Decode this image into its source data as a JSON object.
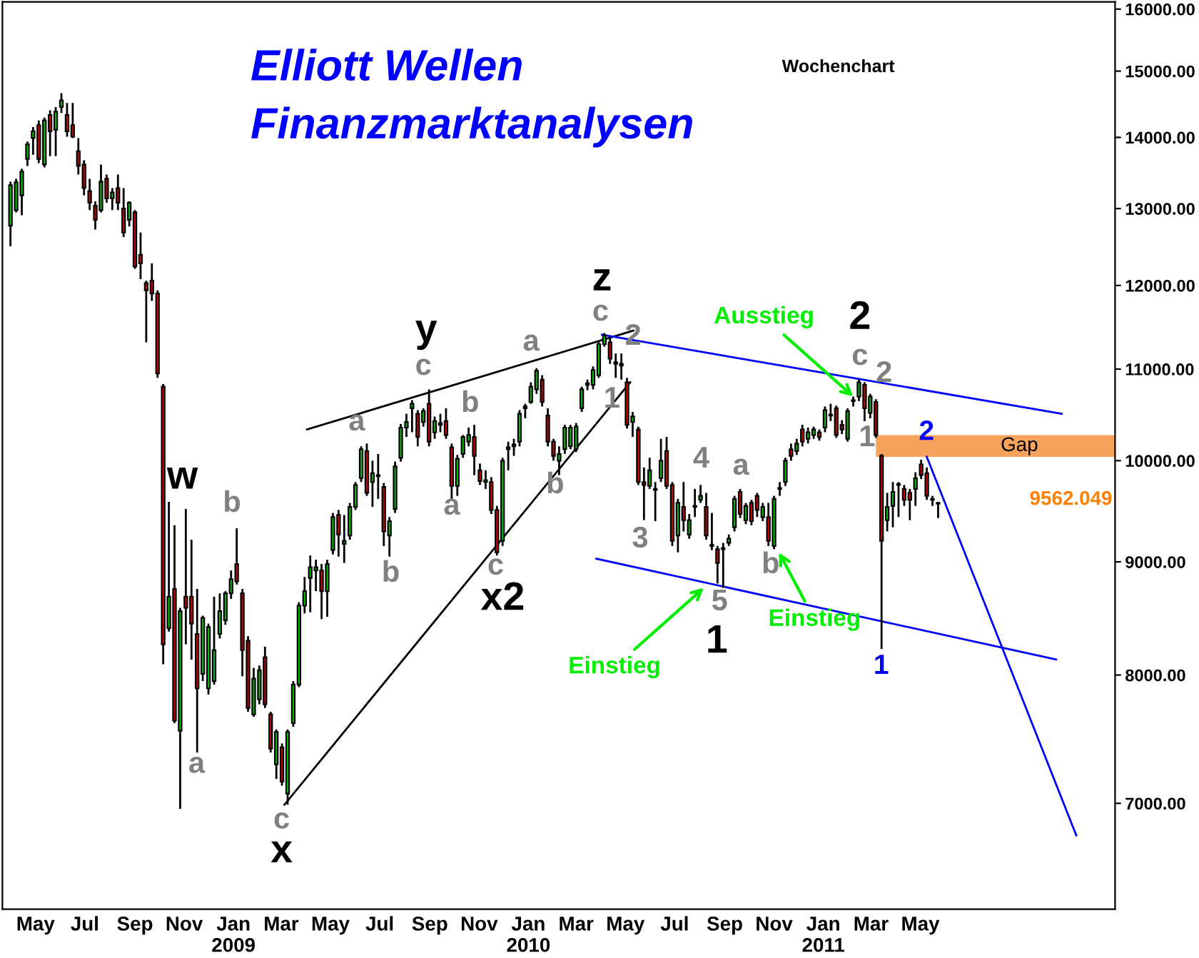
{
  "chart_data": {
    "type": "candlestick",
    "title": "Elliott Wellen",
    "subtitle": "Finanzmarktanalysen",
    "log": "y",
    "grid": false,
    "tick_labels": "xy",
    "colors": [
      "#00cc00",
      "#00cc00",
      "#00cc00",
      "#00cc00",
      "#00cc00",
      "#dd0000",
      "#00cc00",
      "#dd0000",
      "#00cc00",
      "#00cc00",
      "#dd0000",
      "#dd0000",
      "#dd0000",
      "#dd0000",
      "#dd0000",
      "#dd0000",
      "#00cc00",
      "#dd0000",
      "#00cc00",
      "#dd0000",
      "#dd0000",
      "#00cc00",
      "#dd0000",
      "#dd0000",
      "#dd0000",
      "#dd0000",
      "#dd0000",
      "#dd0000",
      "#00cc00",
      "#dd0000",
      "#00cc00",
      "#dd0000",
      "#dd0000",
      "#dd0000",
      "#00cc00",
      "#00cc00",
      "#00cc00",
      "#00cc00",
      "#00cc00",
      "#00cc00",
      "#dd0000",
      "#dd0000",
      "#dd0000",
      "#00cc00",
      "#00cc00",
      "#dd0000",
      "#dd0000",
      "#00cc00",
      "#dd0000",
      "#00cc00",
      "#00cc00",
      "#00cc00",
      "#00cc00",
      "#00cc00",
      "#00cc00",
      "#dd0000",
      "#00cc00",
      "#00cc00",
      "#dd0000",
      "#00cc00",
      "#00cc00",
      "#00cc00",
      "#00cc00",
      "#dd0000",
      "#00cc00",
      "#00cc00",
      "#dd0000",
      "#00cc00",
      "#00cc00",
      "#00cc00",
      "#00cc00",
      "#00cc00",
      "#dd0000",
      "#00cc00",
      "#dd0000",
      "#00cc00",
      "#00cc00",
      "#dd0000",
      "#dd0000",
      "#00cc00",
      "#00cc00",
      "#00cc00",
      "#dd0000",
      "#dd0000",
      "#00cc00",
      "#dd0000",
      "#dd0000",
      "#00cc00",
      "#00cc00",
      "#00cc00",
      "#00cc00",
      "#00cc00",
      "#00cc00",
      "#00cc00",
      "#dd0000",
      "#dd0000",
      "#dd0000",
      "#00cc00",
      "#00cc00",
      "#00cc00",
      "#00cc00",
      "#00cc00",
      "#00cc00",
      "#00cc00",
      "#00cc00",
      "#00cc00",
      "#dd0000",
      "#00cc00",
      "#dd0000",
      "#dd0000",
      "#00cc00",
      "#dd0000",
      "#dd0000",
      "#00cc00",
      "#dd0000",
      "#00cc00",
      "#dd0000",
      "#dd0000",
      "#00cc00",
      "#dd0000",
      "#00cc00",
      "#00cc00",
      "#00cc00",
      "#dd0000",
      "#00cc00",
      "#dd0000",
      "#00cc00",
      "#00cc00",
      "#00cc00",
      "#dd0000",
      "#00cc00",
      "#dd0000",
      "#dd0000",
      "#00cc00",
      "#dd0000",
      "#00cc00",
      "#00cc00",
      "#00cc00",
      "#dd0000",
      "#00cc00",
      "#dd0000",
      "#00cc00",
      "#00cc00",
      "#dd0000",
      "#00cc00",
      "#00cc00",
      "#dd0000",
      "#dd0000",
      "#00cc00",
      "#00cc00",
      "#00cc00",
      "#dd0000",
      "#00cc00",
      "#dd0000",
      "#dd0000",
      "#00cc00",
      "#00cc00",
      "#00cc00",
      "#dd0000",
      "#dd0000",
      "#00cc00",
      "#dd0000",
      "#dd0000",
      "#dd0000",
      "#dd0000"
    ],
    "xlim": [
      "2008-03-21",
      "2011-12-28"
    ],
    "ylim": [
      6270,
      16120
    ],
    "xticks": [
      {
        "value": "2008-05-01",
        "label": "May"
      },
      {
        "value": "2008-07-01",
        "label": "Jul"
      },
      {
        "value": "2008-09-01",
        "label": "Sep"
      },
      {
        "value": "2008-11-01",
        "label": "Nov"
      },
      {
        "value": "2009-01-01",
        "label": "Jan\n2009"
      },
      {
        "value": "2009-03-01",
        "label": "Mar"
      },
      {
        "value": "2009-05-01",
        "label": "May"
      },
      {
        "value": "2009-07-01",
        "label": "Jul"
      },
      {
        "value": "2009-09-01",
        "label": "Sep"
      },
      {
        "value": "2009-11-01",
        "label": "Nov"
      },
      {
        "value": "2010-01-01",
        "label": "Jan\n2010"
      },
      {
        "value": "2010-03-01",
        "label": "Mar"
      },
      {
        "value": "2010-05-01",
        "label": "May"
      },
      {
        "value": "2010-07-01",
        "label": "Jul"
      },
      {
        "value": "2010-09-01",
        "label": "Sep"
      },
      {
        "value": "2010-11-01",
        "label": "Nov"
      },
      {
        "value": "2011-01-01",
        "label": "Jan\n2011"
      },
      {
        "value": "2011-03-01",
        "label": "Mar"
      },
      {
        "value": "2011-05-01",
        "label": "May"
      }
    ],
    "yticks": [
      {
        "value": 7000,
        "label": "7000.00"
      },
      {
        "value": 8000,
        "label": "8000.00"
      },
      {
        "value": 9000,
        "label": "9000.00"
      },
      {
        "value": 10000,
        "label": "10000.00"
      },
      {
        "value": 11000,
        "label": "11000.00"
      },
      {
        "value": 12000,
        "label": "12000.00"
      },
      {
        "value": 13000,
        "label": "13000.00"
      },
      {
        "value": 14000,
        "label": "14000.00"
      },
      {
        "value": 15000,
        "label": "15000.00"
      },
      {
        "value": 16000,
        "label": "16000.00"
      }
    ],
    "x": [
      "2008-03-31",
      "2008-04-07",
      "2008-04-14",
      "2008-04-21",
      "2008-04-28",
      "2008-05-05",
      "2008-05-12",
      "2008-05-19",
      "2008-05-26",
      "2008-06-02",
      "2008-06-09",
      "2008-06-16",
      "2008-06-23",
      "2008-06-30",
      "2008-07-07",
      "2008-07-14",
      "2008-07-21",
      "2008-07-28",
      "2008-08-04",
      "2008-08-11",
      "2008-08-18",
      "2008-08-25",
      "2008-09-01",
      "2008-09-08",
      "2008-09-15",
      "2008-09-22",
      "2008-09-29",
      "2008-10-06",
      "2008-10-13",
      "2008-10-20",
      "2008-10-27",
      "2008-11-03",
      "2008-11-10",
      "2008-11-17",
      "2008-11-24",
      "2008-12-01",
      "2008-12-08",
      "2008-12-15",
      "2008-12-22",
      "2008-12-29",
      "2009-01-05",
      "2009-01-12",
      "2009-01-19",
      "2009-01-26",
      "2009-02-02",
      "2009-02-09",
      "2009-02-16",
      "2009-02-23",
      "2009-03-02",
      "2009-03-09",
      "2009-03-16",
      "2009-03-23",
      "2009-03-30",
      "2009-04-06",
      "2009-04-13",
      "2009-04-20",
      "2009-04-27",
      "2009-05-04",
      "2009-05-11",
      "2009-05-18",
      "2009-05-25",
      "2009-06-01",
      "2009-06-08",
      "2009-06-15",
      "2009-06-22",
      "2009-06-29",
      "2009-07-06",
      "2009-07-13",
      "2009-07-20",
      "2009-07-27",
      "2009-08-03",
      "2009-08-10",
      "2009-08-17",
      "2009-08-24",
      "2009-08-31",
      "2009-09-07",
      "2009-09-14",
      "2009-09-21",
      "2009-09-28",
      "2009-10-05",
      "2009-10-12",
      "2009-10-19",
      "2009-10-26",
      "2009-11-02",
      "2009-11-09",
      "2009-11-16",
      "2009-11-23",
      "2009-11-30",
      "2009-12-07",
      "2009-12-14",
      "2009-12-21",
      "2009-12-28",
      "2010-01-04",
      "2010-01-11",
      "2010-01-18",
      "2010-01-25",
      "2010-02-01",
      "2010-02-08",
      "2010-02-15",
      "2010-02-22",
      "2010-03-01",
      "2010-03-08",
      "2010-03-15",
      "2010-03-22",
      "2010-03-29",
      "2010-04-05",
      "2010-04-12",
      "2010-04-19",
      "2010-04-26",
      "2010-05-03",
      "2010-05-10",
      "2010-05-17",
      "2010-05-24",
      "2010-05-31",
      "2010-06-07",
      "2010-06-14",
      "2010-06-21",
      "2010-06-28",
      "2010-07-05",
      "2010-07-12",
      "2010-07-19",
      "2010-07-26",
      "2010-08-02",
      "2010-08-09",
      "2010-08-16",
      "2010-08-23",
      "2010-08-30",
      "2010-09-06",
      "2010-09-13",
      "2010-09-20",
      "2010-09-27",
      "2010-10-04",
      "2010-10-11",
      "2010-10-18",
      "2010-10-25",
      "2010-11-01",
      "2010-11-08",
      "2010-11-15",
      "2010-11-22",
      "2010-11-29",
      "2010-12-06",
      "2010-12-13",
      "2010-12-20",
      "2010-12-27",
      "2011-01-03",
      "2011-01-10",
      "2011-01-17",
      "2011-01-24",
      "2011-01-31",
      "2011-02-07",
      "2011-02-14",
      "2011-02-21",
      "2011-02-28",
      "2011-03-07",
      "2011-03-14",
      "2011-03-21",
      "2011-03-28",
      "2011-04-04",
      "2011-04-11",
      "2011-04-18",
      "2011-04-25",
      "2011-05-02",
      "2011-05-09",
      "2011-05-16",
      "2011-05-23"
    ],
    "ohlc": [
      [
        12770,
        13370,
        12500,
        13320
      ],
      [
        12980,
        13410,
        12950,
        13360
      ],
      [
        13180,
        13550,
        12910,
        13510
      ],
      [
        13690,
        13940,
        13590,
        13900
      ],
      [
        13990,
        14150,
        13750,
        14090
      ],
      [
        14180,
        14250,
        13630,
        13690
      ],
      [
        13610,
        14290,
        13570,
        14250
      ],
      [
        14330,
        14400,
        13730,
        14090
      ],
      [
        14110,
        14450,
        13730,
        14380
      ],
      [
        14450,
        14660,
        14360,
        14550
      ],
      [
        14330,
        14510,
        14010,
        14090
      ],
      [
        14180,
        14510,
        13990,
        14010
      ],
      [
        13800,
        13990,
        13470,
        13590
      ],
      [
        13610,
        13670,
        13180,
        13280
      ],
      [
        13240,
        13410,
        12980,
        13080
      ],
      [
        13040,
        13100,
        12720,
        12850
      ],
      [
        12980,
        13610,
        12950,
        13370
      ],
      [
        13410,
        13470,
        13080,
        13140
      ],
      [
        13140,
        13280,
        12980,
        13220
      ],
      [
        13280,
        13470,
        12980,
        13080
      ],
      [
        13000,
        13280,
        12620,
        12680
      ],
      [
        12850,
        13100,
        12760,
        13080
      ],
      [
        12950,
        12980,
        12210,
        12240
      ],
      [
        12390,
        12680,
        12080,
        12280
      ],
      [
        12030,
        12060,
        11310,
        11940
      ],
      [
        12060,
        12280,
        11810,
        11900
      ],
      [
        11900,
        11940,
        10900,
        10950
      ],
      [
        10800,
        10830,
        8090,
        8260
      ],
      [
        8400,
        9580,
        8370,
        8680
      ],
      [
        8750,
        9350,
        7610,
        7630
      ],
      [
        7550,
        8580,
        6960,
        8550
      ],
      [
        8680,
        9510,
        8260,
        8580
      ],
      [
        8680,
        9210,
        8130,
        8440
      ],
      [
        8350,
        8750,
        7380,
        7890
      ],
      [
        8010,
        8510,
        7950,
        8490
      ],
      [
        7890,
        8440,
        7840,
        8410
      ],
      [
        7950,
        8680,
        7920,
        8210
      ],
      [
        8350,
        8710,
        8310,
        8550
      ],
      [
        8470,
        8730,
        8430,
        8710
      ],
      [
        8710,
        8920,
        8660,
        8840
      ],
      [
        8980,
        9320,
        8790,
        8820
      ],
      [
        8710,
        8750,
        7990,
        8210
      ],
      [
        8290,
        8330,
        7700,
        7730
      ],
      [
        7680,
        8060,
        7660,
        7970
      ],
      [
        7800,
        8080,
        7760,
        8040
      ],
      [
        8150,
        8240,
        7730,
        7760
      ],
      [
        7680,
        7700,
        7380,
        7410
      ],
      [
        7290,
        7560,
        7180,
        7540
      ],
      [
        7420,
        7450,
        7130,
        7160
      ],
      [
        7070,
        7560,
        6990,
        7540
      ],
      [
        7610,
        7950,
        7580,
        7920
      ],
      [
        7920,
        8630,
        7900,
        8600
      ],
      [
        8600,
        8860,
        8530,
        8730
      ],
      [
        8850,
        9060,
        8540,
        8950
      ],
      [
        8920,
        9020,
        8730,
        8950
      ],
      [
        8920,
        8980,
        8480,
        8730
      ],
      [
        8730,
        9020,
        8500,
        8980
      ],
      [
        9110,
        9470,
        9070,
        9430
      ],
      [
        9450,
        9500,
        9050,
        9260
      ],
      [
        9170,
        9450,
        8990,
        9200
      ],
      [
        9250,
        9570,
        9210,
        9530
      ],
      [
        9530,
        9780,
        9500,
        9750
      ],
      [
        9820,
        10150,
        9780,
        10120
      ],
      [
        10100,
        10180,
        9640,
        9670
      ],
      [
        9780,
        10000,
        9530,
        9870
      ],
      [
        9840,
        10070,
        9610,
        9850
      ],
      [
        9730,
        9770,
        9150,
        9290
      ],
      [
        9250,
        9430,
        9050,
        9390
      ],
      [
        9510,
        9990,
        9470,
        9940
      ],
      [
        10030,
        10390,
        9990,
        10350
      ],
      [
        10350,
        10500,
        10250,
        10410
      ],
      [
        10560,
        10650,
        10300,
        10610
      ],
      [
        10500,
        10540,
        10150,
        10250
      ],
      [
        10410,
        10560,
        10360,
        10530
      ],
      [
        10610,
        10770,
        10150,
        10200
      ],
      [
        10300,
        10470,
        10230,
        10420
      ],
      [
        10380,
        10500,
        10300,
        10400
      ],
      [
        10420,
        10560,
        10230,
        10270
      ],
      [
        10140,
        10180,
        9610,
        9740
      ],
      [
        9740,
        10060,
        9640,
        10020
      ],
      [
        10070,
        10270,
        10030,
        10250
      ],
      [
        10200,
        10350,
        10150,
        10270
      ],
      [
        10250,
        10380,
        9850,
        10050
      ],
      [
        9900,
        9970,
        9750,
        9790
      ],
      [
        9780,
        9900,
        9710,
        9800
      ],
      [
        9780,
        9830,
        9460,
        9500
      ],
      [
        9500,
        9540,
        9060,
        9090
      ],
      [
        9200,
        10030,
        9150,
        10000
      ],
      [
        10120,
        10200,
        9900,
        10140
      ],
      [
        10150,
        10230,
        10050,
        10170
      ],
      [
        10200,
        10540,
        10150,
        10500
      ],
      [
        10560,
        10610,
        10450,
        10580
      ],
      [
        10630,
        10850,
        10610,
        10800
      ],
      [
        10770,
        11010,
        10720,
        10980
      ],
      [
        10880,
        10930,
        10580,
        10630
      ],
      [
        10480,
        10560,
        10150,
        10200
      ],
      [
        10200,
        10230,
        10000,
        10050
      ],
      [
        10000,
        10150,
        9850,
        10070
      ],
      [
        10120,
        10380,
        10070,
        10350
      ],
      [
        10150,
        10380,
        10120,
        10350
      ],
      [
        10120,
        10400,
        10090,
        10360
      ],
      [
        10560,
        10800,
        10520,
        10770
      ],
      [
        10820,
        10880,
        10760,
        10840
      ],
      [
        10820,
        11030,
        10770,
        10990
      ],
      [
        10930,
        11330,
        10900,
        11290
      ],
      [
        11290,
        11420,
        11260,
        11390
      ],
      [
        11310,
        11370,
        11060,
        11120
      ],
      [
        11060,
        11180,
        10900,
        11080
      ],
      [
        11060,
        11180,
        10880,
        11040
      ],
      [
        10850,
        10900,
        10340,
        10380
      ],
      [
        10410,
        10520,
        10250,
        10470
      ],
      [
        10330,
        10360,
        9750,
        9780
      ],
      [
        9780,
        9930,
        9400,
        9750
      ],
      [
        9740,
        10030,
        9710,
        9900
      ],
      [
        9710,
        9780,
        9390,
        9700
      ],
      [
        9820,
        10230,
        9780,
        10000
      ],
      [
        10100,
        10250,
        9710,
        9740
      ],
      [
        9750,
        9780,
        9150,
        9200
      ],
      [
        9250,
        9610,
        9090,
        9570
      ],
      [
        9530,
        9780,
        9290,
        9400
      ],
      [
        9260,
        9460,
        9220,
        9400
      ],
      [
        9530,
        9710,
        9430,
        9540
      ],
      [
        9600,
        9750,
        9570,
        9640
      ],
      [
        9530,
        9670,
        9210,
        9250
      ],
      [
        9150,
        9470,
        9110,
        9160
      ],
      [
        9120,
        9150,
        8800,
        8990
      ],
      [
        9120,
        9180,
        8760,
        9130
      ],
      [
        9180,
        9260,
        9150,
        9220
      ],
      [
        9330,
        9640,
        9290,
        9610
      ],
      [
        9680,
        9710,
        9420,
        9460
      ],
      [
        9400,
        9570,
        9360,
        9540
      ],
      [
        9570,
        9600,
        9350,
        9390
      ],
      [
        9640,
        9670,
        9430,
        9500
      ],
      [
        9430,
        9570,
        9390,
        9530
      ],
      [
        9430,
        9570,
        9150,
        9200
      ],
      [
        9150,
        9640,
        9120,
        9610
      ],
      [
        9710,
        9780,
        9640,
        9720
      ],
      [
        9780,
        10030,
        9740,
        10000
      ],
      [
        10120,
        10180,
        10000,
        10050
      ],
      [
        10100,
        10230,
        10060,
        10180
      ],
      [
        10330,
        10380,
        10150,
        10200
      ],
      [
        10230,
        10350,
        10180,
        10300
      ],
      [
        10270,
        10360,
        10230,
        10330
      ],
      [
        10300,
        10330,
        10210,
        10250
      ],
      [
        10350,
        10580,
        10300,
        10540
      ],
      [
        10480,
        10610,
        10420,
        10490
      ],
      [
        10560,
        10590,
        10240,
        10270
      ],
      [
        10380,
        10430,
        10280,
        10330
      ],
      [
        10230,
        10560,
        10200,
        10530
      ],
      [
        10640,
        10690,
        10580,
        10650
      ],
      [
        10690,
        10880,
        10640,
        10850
      ],
      [
        10820,
        10850,
        10420,
        10560
      ],
      [
        10510,
        10720,
        10450,
        10690
      ],
      [
        10630,
        10660,
        10240,
        10270
      ],
      [
        10050,
        10070,
        8220,
        9200
      ],
      [
        9400,
        9670,
        9290,
        9530
      ],
      [
        9540,
        9780,
        9330,
        9680
      ],
      [
        9750,
        9780,
        9430,
        9760
      ],
      [
        9710,
        9750,
        9540,
        9600
      ],
      [
        9670,
        9710,
        9400,
        9600
      ],
      [
        9710,
        9880,
        9540,
        9820
      ],
      [
        9960,
        10010,
        9810,
        9850
      ],
      [
        9870,
        9930,
        9600,
        9640
      ],
      [
        9610,
        9640,
        9540,
        9600
      ],
      [
        9570,
        9580,
        9420,
        9562.049
      ]
    ],
    "series": [
      {
        "type": "line",
        "color": "#000000",
        "x": [
          "2009-04-02",
          "2010-05-11"
        ],
        "values": [
          10330,
          11450
        ]
      },
      {
        "type": "line",
        "color": "#000000",
        "x": [
          "2009-03-05",
          "2010-05-07"
        ],
        "values": [
          6990,
          10850
        ]
      },
      {
        "type": "line",
        "color": "#0000ff",
        "x": [
          "2010-04-02",
          "2011-10-23"
        ],
        "values": [
          11400,
          10500
        ]
      },
      {
        "type": "line",
        "color": "#0000ff",
        "x": [
          "2010-03-26",
          "2011-10-16"
        ],
        "values": [
          9030,
          8130
        ]
      },
      {
        "type": "line",
        "color": "#0000ff",
        "x": [
          "2011-05-09",
          "2011-11-10"
        ],
        "values": [
          10040,
          6770
        ]
      }
    ],
    "bands": [
      {
        "axis": "y",
        "from": 10040,
        "to": 10270,
        "label": "Gap",
        "color": "#f7a35c"
      }
    ],
    "annotations": [
      "Wochenchart",
      "w",
      "b",
      "a",
      "c",
      "x",
      "a",
      "c",
      "y",
      "b",
      "b",
      "a",
      "c",
      "x2",
      "a",
      "b",
      "z",
      "c",
      "2",
      "1",
      "3",
      "4",
      "a",
      "5",
      "1",
      "b",
      "2",
      "c",
      "2",
      "1",
      "2",
      "1",
      {
        "text": "Ausstieg",
        "x": "2011-02-07",
        "y": 10690
      },
      {
        "text": "Einstieg",
        "x": "2010-08-06",
        "y": 8760
      },
      {
        "text": "Einstieg",
        "x": "2010-11-07",
        "y": 9090
      },
      "9562.049"
    ]
  }
}
